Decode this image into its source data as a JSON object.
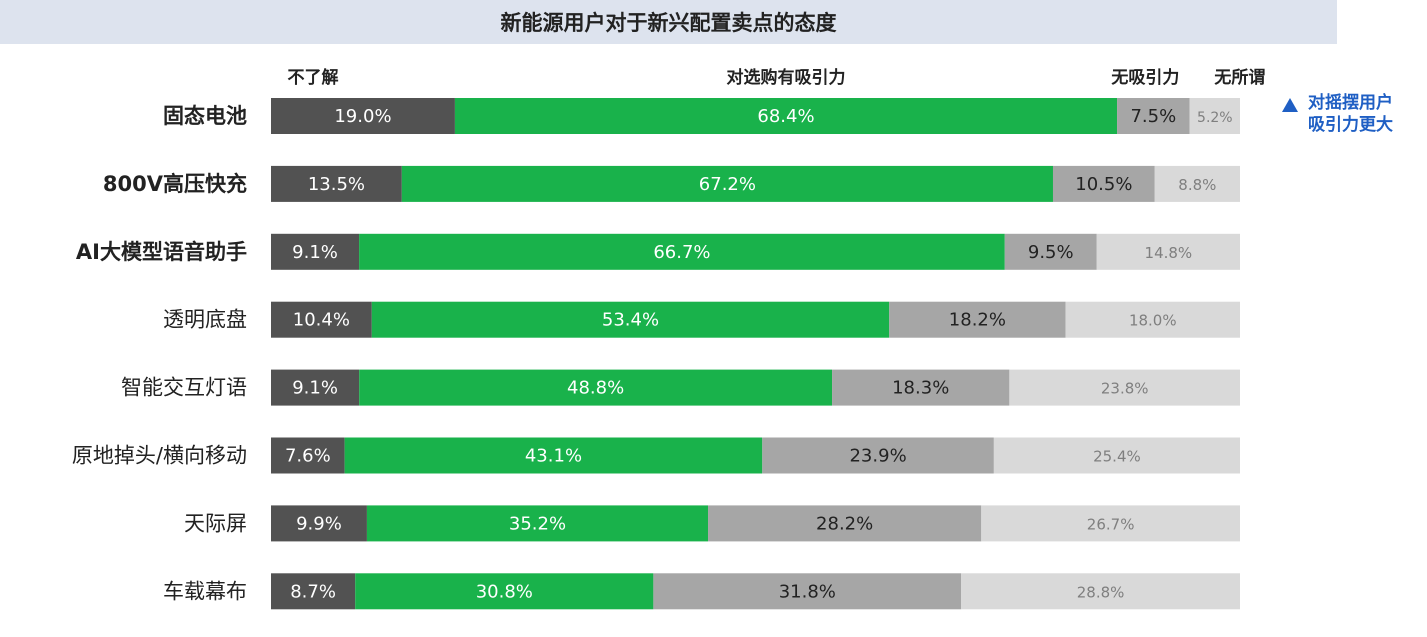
{
  "title": "新能源用户对于新兴配置卖点的态度",
  "note": "对摇摆用户\n吸引力更大",
  "colors": {
    "unknown": "#525252",
    "attractive": "#19b24b",
    "unattractive": "#a6a6a6",
    "indifferent": "#d9d9d9",
    "accent": "#1f5fc4",
    "title_bg": "#dde3ee"
  },
  "chart_data": {
    "type": "bar",
    "orientation": "horizontal",
    "stacked": true,
    "categories": [
      "固态电池",
      "800V高压快充",
      "AI大模型语音助手",
      "透明底盘",
      "智能交互灯语",
      "原地掉头/横向移动",
      "天际屏",
      "车载幕布"
    ],
    "bold_categories": [
      "固态电池",
      "800V高压快充",
      "AI大模型语音助手"
    ],
    "series": [
      {
        "name": "不了解",
        "values": [
          19.0,
          13.5,
          9.1,
          10.4,
          9.1,
          7.6,
          9.9,
          8.7
        ]
      },
      {
        "name": "对选购有吸引力",
        "values": [
          68.4,
          67.2,
          66.7,
          53.4,
          48.8,
          43.1,
          35.2,
          30.8
        ]
      },
      {
        "name": "无吸引力",
        "values": [
          7.5,
          10.5,
          9.5,
          18.2,
          18.3,
          23.9,
          28.2,
          31.8
        ]
      },
      {
        "name": "无所谓",
        "values": [
          5.2,
          8.8,
          14.8,
          18.0,
          23.8,
          25.4,
          26.7,
          28.8
        ]
      }
    ],
    "unit": "%",
    "xlim": [
      0,
      100
    ]
  }
}
